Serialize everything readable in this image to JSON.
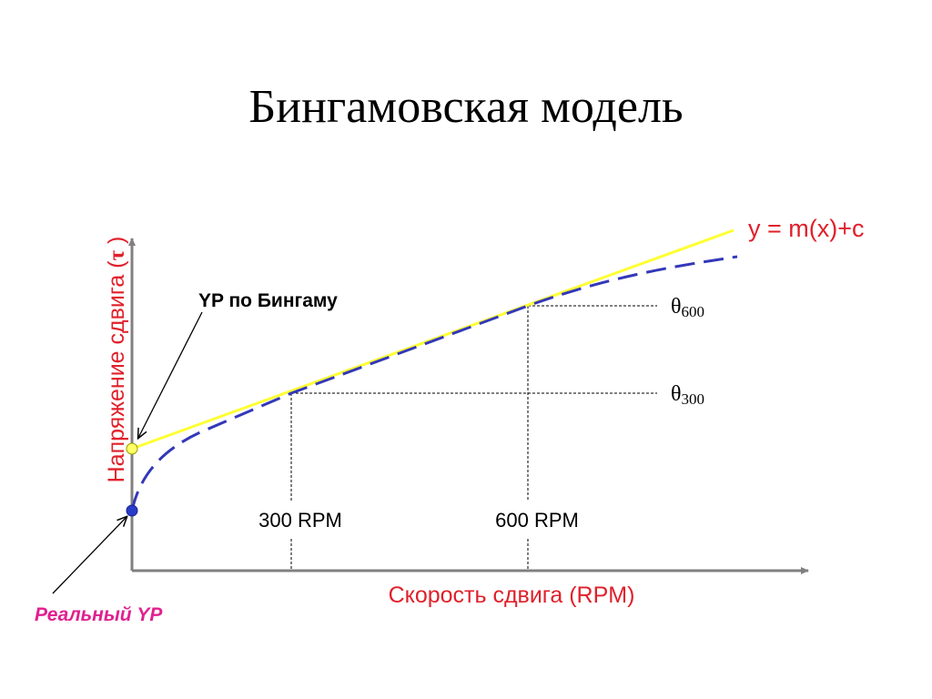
{
  "title": "Бингамовская модель",
  "axes": {
    "y_label_text": "Напряжение сдвига (",
    "y_label_symbol": "τ",
    "y_label_close": " )",
    "x_label": "Скорость сдвига (RPM)"
  },
  "labels": {
    "equation": "y = m(x)+c",
    "bingham_yp": "YP по Бингаму",
    "real_yp": "Реальный YP",
    "rpm300": "300 RPM",
    "rpm600": "600 RPM",
    "theta_symbol": "θ",
    "theta600_sub": "600",
    "theta300_sub": "300"
  },
  "colors": {
    "axis_label": "#e0202a",
    "equation": "#e0202a",
    "real_yp": "#e0208f",
    "bingham_line": "#ffff33",
    "real_curve": "#3338b8"
  }
}
